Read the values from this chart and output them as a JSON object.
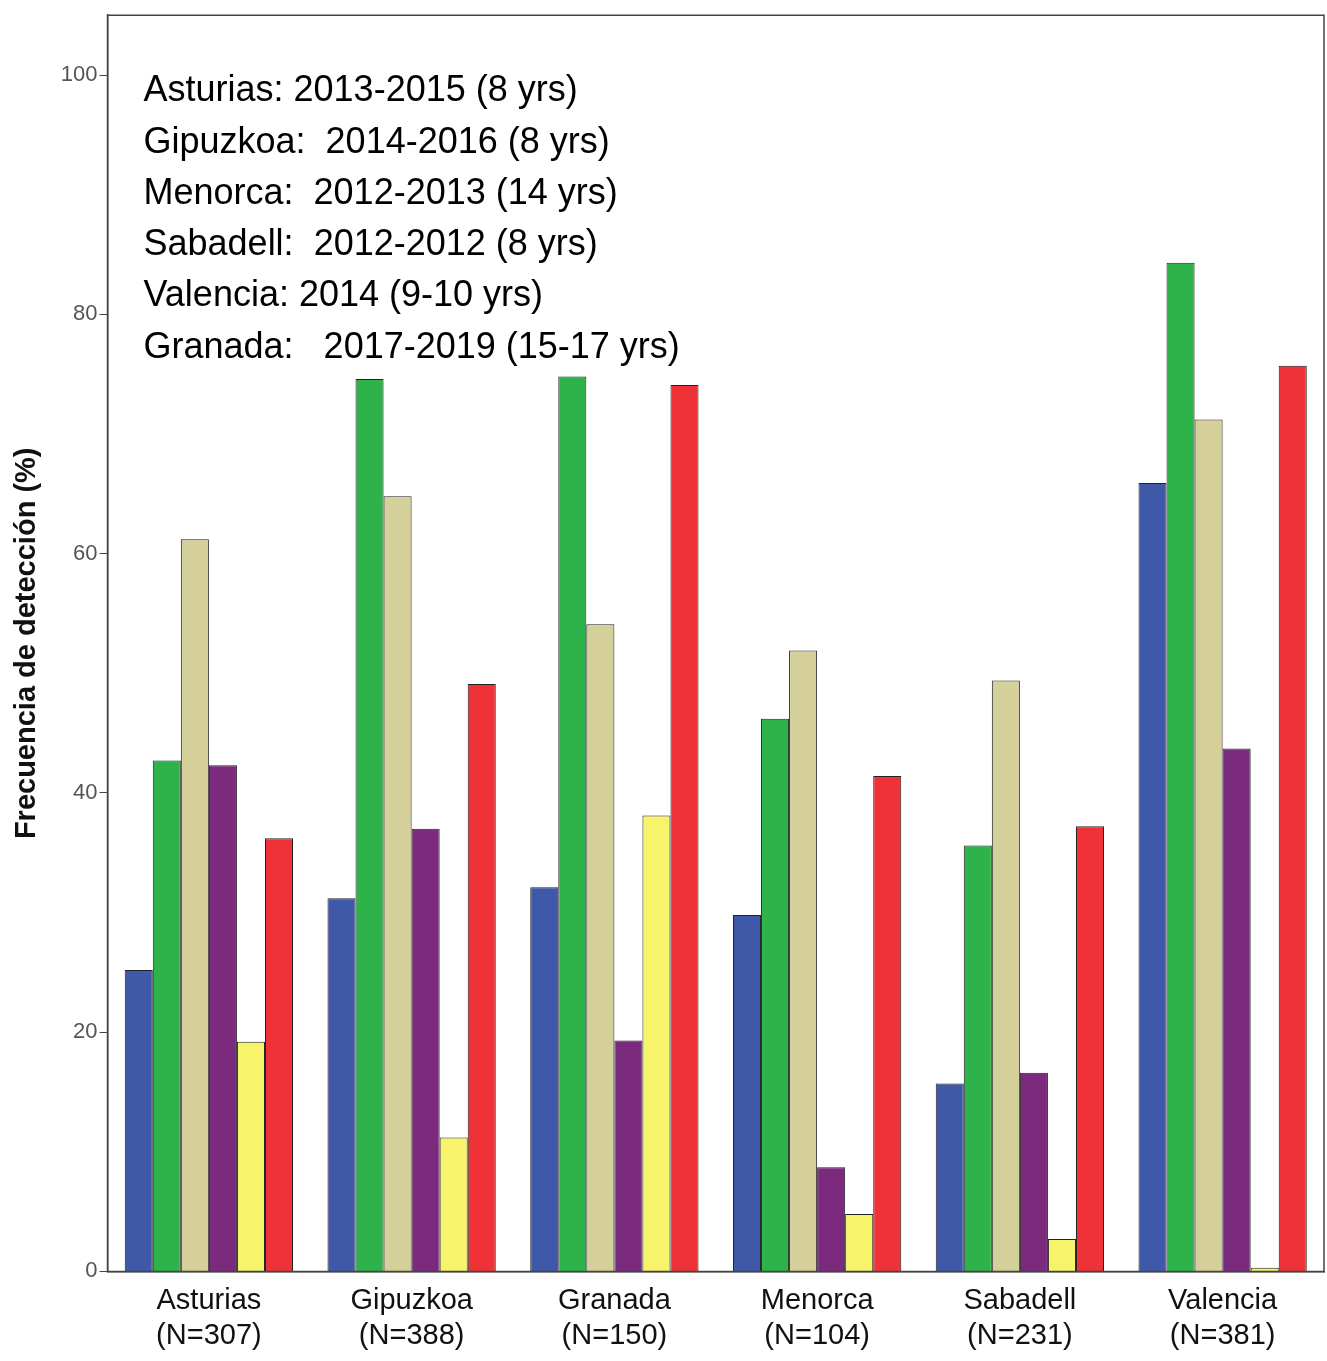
{
  "chart_data": {
    "type": "bar",
    "ylabel": "Frecuencia de detección (%)",
    "categories": [
      "Asturias\n(N=307)",
      "Gipuzkoa\n(N=388)",
      "Granada\n(N=150)",
      "Menorca\n(N=104)",
      "Sabadell\n(N=231)",
      "Valencia\n(N=381)"
    ],
    "series": [
      {
        "color": "#3f58a8",
        "values": [
          25.2,
          31.2,
          32.1,
          29.8,
          15.7,
          65.9
        ]
      },
      {
        "color": "#2db34a",
        "values": [
          42.7,
          74.6,
          74.8,
          46.2,
          35.6,
          84.3
        ]
      },
      {
        "color": "#d5cf9a",
        "values": [
          61.2,
          64.8,
          54.1,
          51.9,
          49.4,
          71.2
        ]
      },
      {
        "color": "#7b2a7e",
        "values": [
          42.3,
          37,
          19.3,
          8.7,
          16.6,
          43.7
        ]
      },
      {
        "color": "#f7f36b",
        "values": [
          19.2,
          11.2,
          38.1,
          4.8,
          2.7,
          0.3
        ]
      },
      {
        "color": "#ee3237",
        "values": [
          36.2,
          49.1,
          74.1,
          41.4,
          37.2,
          75.7
        ]
      }
    ],
    "ylim": [
      0,
      105
    ],
    "yticks": [
      0,
      20,
      40,
      60,
      80,
      100
    ],
    "grid": false,
    "legend": false,
    "annotations": [
      "Asturias: 2013-2015 (8 yrs)",
      "Gipuzkoa:  2014-2016 (8 yrs)",
      "Menorca:  2012-2013 (14 yrs)",
      "Sabadell:  2012-2012 (8 yrs)",
      "Valencia: 2014 (9-10 yrs)",
      "Granada:   2017-2019 (15-17 yrs)"
    ]
  }
}
